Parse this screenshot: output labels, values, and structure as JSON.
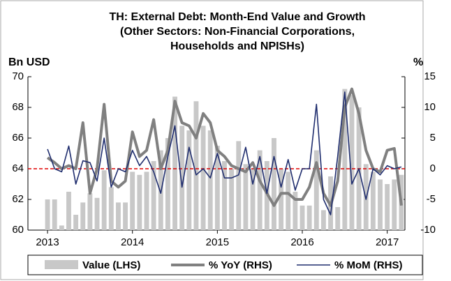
{
  "chart_data": {
    "type": "bar_line",
    "title": [
      "TH: External Debt: Month-End Value and Growth",
      "(Other Sectors: Non-Financial Corporations,",
      "Households and NPISHs)"
    ],
    "y_label": "Bn USD",
    "y2_label": "%",
    "categories": [
      "2013",
      null,
      null,
      null,
      null,
      null,
      null,
      null,
      null,
      null,
      null,
      null,
      "2014",
      null,
      null,
      null,
      null,
      null,
      null,
      null,
      null,
      null,
      null,
      null,
      "2015",
      null,
      null,
      null,
      null,
      null,
      null,
      null,
      null,
      null,
      null,
      null,
      "2016",
      null,
      null,
      null,
      null,
      null,
      null,
      null,
      null,
      null,
      null,
      null,
      "2017",
      null,
      null
    ],
    "series": [
      {
        "name": "Value (LHS)",
        "kind": "bar",
        "color": "#c8c8c8",
        "values": [
          62.0,
          62.0,
          60.3,
          62.5,
          61.0,
          61.8,
          62.4,
          62.1,
          63.9,
          62.8,
          61.8,
          61.8,
          63.8,
          63.6,
          63.8,
          64.5,
          65.2,
          66.0,
          68.7,
          66.8,
          66.5,
          68.4,
          66.8,
          66.5,
          65.5,
          64.5,
          64.0,
          65.8,
          64.3,
          64.0,
          65.2,
          64.5,
          66.0,
          64.0,
          63.8,
          62.5,
          61.6,
          61.6,
          65.2,
          61.3,
          63.5,
          61.5,
          69.2,
          68.8,
          68.0,
          64.3,
          63.8,
          63.3,
          63.0,
          63.3,
          63.6
        ]
      },
      {
        "name": "% YoY (RHS)",
        "kind": "line",
        "axis": "y2",
        "color": "#808080",
        "values": [
          1.8,
          1.0,
          0,
          0.5,
          0,
          7.5,
          -4,
          0,
          10.5,
          -2,
          -3,
          -2,
          6,
          2,
          3,
          8,
          0,
          3,
          11,
          7.5,
          7,
          5,
          9,
          7.5,
          3,
          2,
          0.5,
          0,
          -0.5,
          1,
          -2,
          -4,
          -6,
          -4,
          -4,
          -5,
          -5,
          -3,
          1,
          -4,
          -6,
          -2,
          10,
          13,
          9,
          3,
          0,
          -0.5,
          3,
          3.3,
          -6
        ]
      },
      {
        "name": "% MoM (RHS)",
        "kind": "line",
        "axis": "y2",
        "color": "#1f2d6e",
        "values": [
          3.2,
          0,
          -0.5,
          3.7,
          -2.5,
          1.3,
          1.0,
          -2.0,
          5,
          -3,
          0,
          -0.5,
          3,
          0.5,
          2,
          -0.5,
          -4,
          2,
          7,
          -3,
          3.5,
          -1,
          0,
          -1.5,
          2.5,
          -1.5,
          -1.5,
          -1,
          3.5,
          -2.5,
          2,
          -4,
          2,
          -3,
          1.5,
          -3.5,
          0,
          0,
          10.5,
          -5,
          -7.5,
          2,
          12.5,
          -2.5,
          0,
          -5,
          0,
          -1,
          0.5,
          0,
          0.3
        ]
      }
    ],
    "ylim": [
      60,
      70
    ],
    "yticks": [
      60,
      62,
      64,
      66,
      68,
      70
    ],
    "y2lim": [
      -10,
      15
    ],
    "y2ticks": [
      -10,
      -5,
      0,
      5,
      10,
      15
    ],
    "legend": "bottom"
  }
}
